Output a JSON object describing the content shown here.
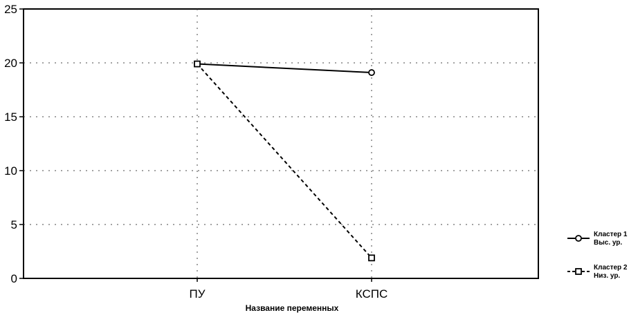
{
  "chart_data": {
    "type": "line",
    "categories": [
      "ПУ",
      "КСПС"
    ],
    "series": [
      {
        "name": "Кластер 1",
        "name_line2": "Выс. ур.",
        "values": [
          19.9,
          19.1
        ],
        "marker": "circle",
        "line_style": "solid",
        "color": "#000000"
      },
      {
        "name": "Кластер 2",
        "name_line2": "Низ. ур.",
        "values": [
          19.9,
          1.9
        ],
        "marker": "square",
        "line_style": "dashed",
        "color": "#000000"
      }
    ],
    "title": "",
    "xlabel": "Название переменных",
    "ylabel": "",
    "ylim": [
      0,
      25
    ],
    "yticks": [
      0,
      5,
      10,
      15,
      20,
      25
    ],
    "grid": true,
    "legend_position": "right"
  }
}
